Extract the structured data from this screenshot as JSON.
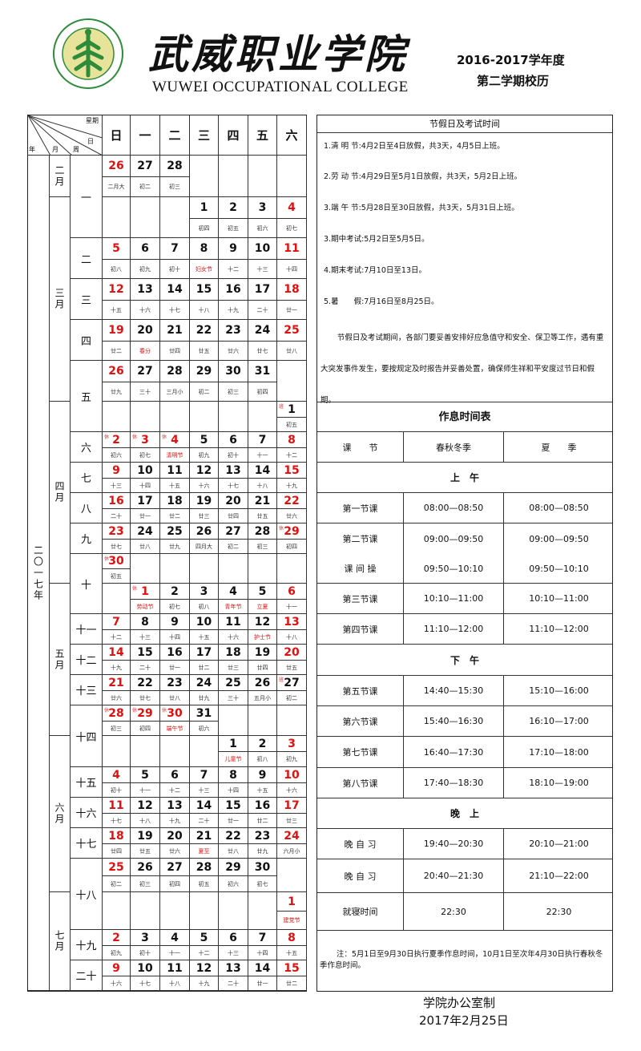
{
  "header": {
    "logo_text": "武威职业学院 WUWEI OCCUPATIONAL COLLEGE",
    "chinese_name": "武威职业学院",
    "english_name": "WUWEI OCCUPATIONAL COLLEGE",
    "term_year": "2016-2017学年度",
    "term_name": "第二学期校历",
    "brand_green": "#2e8b3a"
  },
  "calendar": {
    "corner": {
      "weekday": "星期",
      "day": "日",
      "year": "年",
      "month": "月",
      "week": "周"
    },
    "weekdays": [
      "日",
      "一",
      "二",
      "三",
      "四",
      "五",
      "六"
    ],
    "year_label": "二〇一七年",
    "colors": {
      "holiday": "#e01010",
      "normal": "#111111"
    },
    "rows": [
      {
        "m": "二月",
        "w": "一",
        "days": [
          [
            "26",
            "二月大",
            "r"
          ],
          [
            "27",
            "初二"
          ],
          [
            "28",
            "初三"
          ],
          null,
          null,
          null,
          null
        ]
      },
      {
        "m": "三月",
        "w": "一",
        "days": [
          null,
          null,
          null,
          [
            "1",
            "初四"
          ],
          [
            "2",
            "初五"
          ],
          [
            "3",
            "初六"
          ],
          [
            "4",
            "初七",
            "r"
          ]
        ]
      },
      {
        "m": "三月",
        "w": "二",
        "days": [
          [
            "5",
            "初八",
            "r"
          ],
          [
            "6",
            "初九"
          ],
          [
            "7",
            "初十"
          ],
          [
            "8",
            "妇女节",
            "L"
          ],
          [
            "9",
            "十二"
          ],
          [
            "10",
            "十三"
          ],
          [
            "11",
            "十四",
            "r"
          ]
        ]
      },
      {
        "m": "三月",
        "w": "三",
        "days": [
          [
            "12",
            "十五",
            "r"
          ],
          [
            "13",
            "十六"
          ],
          [
            "14",
            "十七"
          ],
          [
            "15",
            "十八"
          ],
          [
            "16",
            "十九"
          ],
          [
            "17",
            "二十"
          ],
          [
            "18",
            "廿一",
            "r"
          ]
        ]
      },
      {
        "m": "三月",
        "w": "四",
        "days": [
          [
            "19",
            "廿二",
            "r"
          ],
          [
            "20",
            "春分",
            "L"
          ],
          [
            "21",
            "廿四"
          ],
          [
            "22",
            "廿五"
          ],
          [
            "23",
            "廿六"
          ],
          [
            "24",
            "廿七"
          ],
          [
            "25",
            "廿八",
            "r"
          ]
        ]
      },
      {
        "m": "三月",
        "w": "五",
        "days": [
          [
            "26",
            "廿九",
            "r"
          ],
          [
            "27",
            "三十"
          ],
          [
            "28",
            "三月小"
          ],
          [
            "29",
            "初二"
          ],
          [
            "30",
            "初三"
          ],
          [
            "31",
            "初四"
          ],
          null
        ]
      },
      {
        "m": "四月",
        "w": "五",
        "days": [
          null,
          null,
          null,
          null,
          null,
          null,
          [
            "1",
            "初五",
            "",
            "班"
          ]
        ]
      },
      {
        "m": "四月",
        "w": "六",
        "days": [
          [
            "2",
            "初六",
            "r",
            "休"
          ],
          [
            "3",
            "初七",
            "r",
            "休"
          ],
          [
            "4",
            "清明节",
            "rL",
            "休"
          ],
          [
            "5",
            "初九"
          ],
          [
            "6",
            "初十"
          ],
          [
            "7",
            "十一"
          ],
          [
            "8",
            "十二",
            "r"
          ]
        ]
      },
      {
        "m": "四月",
        "w": "七",
        "days": [
          [
            "9",
            "十三",
            "r"
          ],
          [
            "10",
            "十四"
          ],
          [
            "11",
            "十五"
          ],
          [
            "12",
            "十六"
          ],
          [
            "13",
            "十七"
          ],
          [
            "14",
            "十八"
          ],
          [
            "15",
            "十九",
            "r"
          ]
        ]
      },
      {
        "m": "四月",
        "w": "八",
        "days": [
          [
            "16",
            "二十",
            "r"
          ],
          [
            "17",
            "廿一"
          ],
          [
            "18",
            "廿二"
          ],
          [
            "19",
            "廿三"
          ],
          [
            "20",
            "廿四"
          ],
          [
            "21",
            "廿五"
          ],
          [
            "22",
            "廿六",
            "r"
          ]
        ]
      },
      {
        "m": "四月",
        "w": "九",
        "days": [
          [
            "23",
            "廿七",
            "r"
          ],
          [
            "24",
            "廿八"
          ],
          [
            "25",
            "廿九"
          ],
          [
            "26",
            "四月大"
          ],
          [
            "27",
            "初二"
          ],
          [
            "28",
            "初三"
          ],
          [
            "29",
            "初四",
            "r",
            "休"
          ]
        ]
      },
      {
        "m": "四月",
        "w": "十",
        "days": [
          [
            "30",
            "初五",
            "r",
            "休"
          ],
          null,
          null,
          null,
          null,
          null,
          null
        ]
      },
      {
        "m": "五月",
        "w": "十",
        "days": [
          null,
          [
            "1",
            "劳动节",
            "rL",
            "休"
          ],
          [
            "2",
            "初七"
          ],
          [
            "3",
            "初八"
          ],
          [
            "4",
            "青年节",
            "L"
          ],
          [
            "5",
            "立夏",
            "L"
          ],
          [
            "6",
            "十一",
            "r"
          ]
        ]
      },
      {
        "m": "五月",
        "w": "十一",
        "days": [
          [
            "7",
            "十二",
            "r"
          ],
          [
            "8",
            "十三"
          ],
          [
            "9",
            "十四"
          ],
          [
            "10",
            "十五"
          ],
          [
            "11",
            "十六"
          ],
          [
            "12",
            "护士节",
            "L"
          ],
          [
            "13",
            "十八",
            "r"
          ]
        ]
      },
      {
        "m": "五月",
        "w": "十二",
        "days": [
          [
            "14",
            "十九",
            "r"
          ],
          [
            "15",
            "二十"
          ],
          [
            "16",
            "廿一"
          ],
          [
            "17",
            "廿二"
          ],
          [
            "18",
            "廿三"
          ],
          [
            "19",
            "廿四"
          ],
          [
            "20",
            "廿五",
            "r"
          ]
        ]
      },
      {
        "m": "五月",
        "w": "十三",
        "days": [
          [
            "21",
            "廿六",
            "r"
          ],
          [
            "22",
            "廿七"
          ],
          [
            "23",
            "廿八"
          ],
          [
            "24",
            "廿九"
          ],
          [
            "25",
            "三十"
          ],
          [
            "26",
            "五月小"
          ],
          [
            "27",
            "初二",
            "",
            "班"
          ]
        ]
      },
      {
        "m": "五月",
        "w": "十四",
        "days": [
          [
            "28",
            "初三",
            "r",
            "休"
          ],
          [
            "29",
            "初四",
            "r",
            "休"
          ],
          [
            "30",
            "端午节",
            "rL",
            "休"
          ],
          [
            "31",
            "初六"
          ],
          null,
          null,
          null
        ]
      },
      {
        "m": "六月",
        "w": "十四",
        "days": [
          null,
          null,
          null,
          null,
          [
            "1",
            "儿童节",
            "L"
          ],
          [
            "2",
            "初八"
          ],
          [
            "3",
            "初九",
            "r"
          ]
        ]
      },
      {
        "m": "六月",
        "w": "十五",
        "days": [
          [
            "4",
            "初十",
            "r"
          ],
          [
            "5",
            "十一"
          ],
          [
            "6",
            "十二"
          ],
          [
            "7",
            "十三"
          ],
          [
            "8",
            "十四"
          ],
          [
            "9",
            "十五"
          ],
          [
            "10",
            "十六",
            "r"
          ]
        ]
      },
      {
        "m": "六月",
        "w": "十六",
        "days": [
          [
            "11",
            "十七",
            "r"
          ],
          [
            "12",
            "十八"
          ],
          [
            "13",
            "十九"
          ],
          [
            "14",
            "二十"
          ],
          [
            "15",
            "廿一"
          ],
          [
            "16",
            "廿二"
          ],
          [
            "17",
            "廿三",
            "r"
          ]
        ]
      },
      {
        "m": "六月",
        "w": "十七",
        "days": [
          [
            "18",
            "廿四",
            "r"
          ],
          [
            "19",
            "廿五"
          ],
          [
            "20",
            "廿六"
          ],
          [
            "21",
            "夏至",
            "L"
          ],
          [
            "22",
            "廿八"
          ],
          [
            "23",
            "廿九"
          ],
          [
            "24",
            "六月小",
            "r"
          ]
        ]
      },
      {
        "m": "六月",
        "w": "十八",
        "days": [
          [
            "25",
            "初二",
            "r"
          ],
          [
            "26",
            "初三"
          ],
          [
            "27",
            "初四"
          ],
          [
            "28",
            "初五"
          ],
          [
            "29",
            "初六"
          ],
          [
            "30",
            "初七"
          ],
          null
        ]
      },
      {
        "m": "七月",
        "w": "十八",
        "days": [
          null,
          null,
          null,
          null,
          null,
          null,
          [
            "1",
            "建党节",
            "rL"
          ]
        ]
      },
      {
        "m": "七月",
        "w": "十九",
        "days": [
          [
            "2",
            "初九",
            "r"
          ],
          [
            "3",
            "初十"
          ],
          [
            "4",
            "十一"
          ],
          [
            "5",
            "十二"
          ],
          [
            "6",
            "十三"
          ],
          [
            "7",
            "十四"
          ],
          [
            "8",
            "十五",
            "r"
          ]
        ]
      },
      {
        "m": "七月",
        "w": "二十",
        "days": [
          [
            "9",
            "十六",
            "r"
          ],
          [
            "10",
            "十七"
          ],
          [
            "11",
            "十八"
          ],
          [
            "12",
            "十九"
          ],
          [
            "13",
            "二十"
          ],
          [
            "14",
            "廿一"
          ],
          [
            "15",
            "廿二",
            "r"
          ]
        ]
      }
    ]
  },
  "holidays": {
    "title": "节假日及考试时间",
    "items": [
      "1.清 明 节:4月2日至4日放假，共3天，4月5日上班。",
      "2.劳 动 节:4月29日至5月1日放假，共3天，5月2日上班。",
      "3.端 午 节:5月28日至30日放假，共3天，5月31日上班。",
      "3.期中考试:5月2日至5月5日。",
      "4.期末考试:7月10日至13日。",
      "5.暑　　假:7月16日至8月25日。"
    ],
    "notice": "节假日及考试期间，各部门要妥善安排好应急值守和安全、保卫等工作，遇有重大突发事件发生，要按规定及时报告并妥善处置，确保师生祥和平安度过节日和假期。"
  },
  "schedule": {
    "title": "作息时间表",
    "headers": [
      "课　　节",
      "春秋冬季",
      "夏　　季"
    ],
    "rows": [
      {
        "section": "上　午"
      },
      {
        "cells": [
          "第一节课",
          "08:00—08:50",
          "08:00—08:50"
        ]
      },
      {
        "cells": [
          "第二节课",
          "09:00—09:50",
          "09:00—09:50"
        ]
      },
      {
        "cells": [
          "课 间 操",
          "09:50—10:10",
          "09:50—10:10"
        ]
      },
      {
        "cells": [
          "第三节课",
          "10:10—11:00",
          "10:10—11:00"
        ]
      },
      {
        "cells": [
          "第四节课",
          "11:10—12:00",
          "11:10—12:00"
        ]
      },
      {
        "section": "下　午"
      },
      {
        "cells": [
          "第五节课",
          "14:40—15:30",
          "15:10—16:00"
        ]
      },
      {
        "cells": [
          "第六节课",
          "15:40—16:30",
          "16:10—17:00"
        ]
      },
      {
        "cells": [
          "第七节课",
          "16:40—17:30",
          "17:10—18:00"
        ]
      },
      {
        "cells": [
          "第八节课",
          "17:40—18:30",
          "18:10—19:00"
        ]
      },
      {
        "section": "晚　上"
      },
      {
        "cells": [
          "晚 自 习",
          "19:40—20:30",
          "20:10—21:00"
        ]
      },
      {
        "cells": [
          "晚 自 习",
          "20:40—21:30",
          "21:10—22:00"
        ]
      },
      {
        "cells": [
          "就寝时间",
          "22:30",
          "22:30"
        ]
      }
    ],
    "note": "注：5月1日至9月30日执行夏季作息时间，10月1日至次年4月30日执行春秋冬季作息时间。"
  },
  "footer": {
    "issuer": "学院办公室制",
    "date": "2017年2月25日"
  }
}
